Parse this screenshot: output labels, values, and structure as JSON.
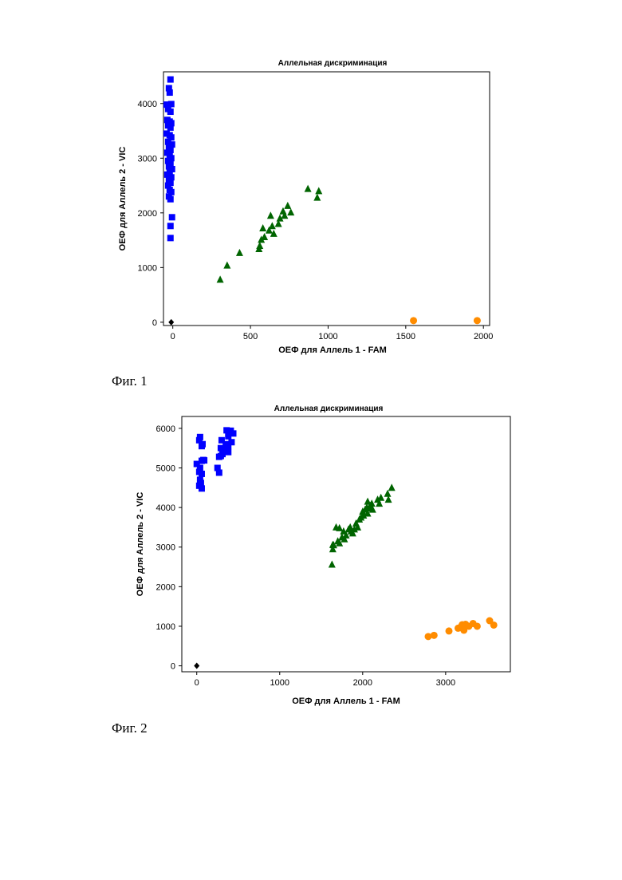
{
  "captions": {
    "fig1": "Фиг. 1",
    "fig2": "Фиг. 2"
  },
  "colors": {
    "blue_square": "#0000ff",
    "green_triangle": "#006400",
    "orange_circle": "#ff8c00",
    "black_diamond": "#000000"
  },
  "chart_data": [
    {
      "type": "scatter",
      "title": "Аллельная дискриминация",
      "xlabel": "ОЕФ для Аллель 1 - FAM",
      "ylabel": "ОЕФ для Аллель 2 - VIC",
      "xlim": [
        -60,
        2040
      ],
      "ylim": [
        -60,
        4580
      ],
      "xticks": [
        0,
        500,
        1000,
        1500,
        2000
      ],
      "yticks": [
        0,
        1000,
        2000,
        3000,
        4000
      ],
      "xtick_labels": [
        "0",
        "500",
        "1000",
        "1500",
        "2000"
      ],
      "ytick_labels": [
        "0",
        "1000",
        "2000",
        "3000",
        "4000"
      ],
      "grid": false,
      "series": [
        {
          "marker": "square",
          "color": "#0000ff",
          "points": [
            [
              -15,
              4440
            ],
            [
              -25,
              4280
            ],
            [
              -20,
              4200
            ],
            [
              -40,
              3980
            ],
            [
              -10,
              3990
            ],
            [
              -30,
              3900
            ],
            [
              -15,
              3850
            ],
            [
              -35,
              3700
            ],
            [
              -20,
              3670
            ],
            [
              -10,
              3640
            ],
            [
              -30,
              3600
            ],
            [
              -15,
              3560
            ],
            [
              -40,
              3450
            ],
            [
              -20,
              3420
            ],
            [
              -10,
              3380
            ],
            [
              -30,
              3300
            ],
            [
              -5,
              3250
            ],
            [
              -25,
              3200
            ],
            [
              -15,
              3150
            ],
            [
              -35,
              3100
            ],
            [
              -20,
              3050
            ],
            [
              -10,
              3000
            ],
            [
              -30,
              2950
            ],
            [
              -15,
              2900
            ],
            [
              -25,
              2850
            ],
            [
              -5,
              2800
            ],
            [
              -20,
              2750
            ],
            [
              -35,
              2700
            ],
            [
              -10,
              2650
            ],
            [
              -25,
              2600
            ],
            [
              -15,
              2550
            ],
            [
              -30,
              2500
            ],
            [
              -20,
              2420
            ],
            [
              -10,
              2380
            ],
            [
              -25,
              2300
            ],
            [
              -15,
              2250
            ],
            [
              -5,
              1920
            ],
            [
              -15,
              1760
            ],
            [
              -15,
              1540
            ]
          ]
        },
        {
          "marker": "triangle",
          "color": "#006400",
          "points": [
            [
              305,
              780
            ],
            [
              350,
              1040
            ],
            [
              430,
              1270
            ],
            [
              555,
              1340
            ],
            [
              560,
              1400
            ],
            [
              570,
              1510
            ],
            [
              590,
              1560
            ],
            [
              580,
              1720
            ],
            [
              620,
              1680
            ],
            [
              640,
              1760
            ],
            [
              630,
              1950
            ],
            [
              650,
              1620
            ],
            [
              680,
              1800
            ],
            [
              690,
              1900
            ],
            [
              720,
              1950
            ],
            [
              710,
              2030
            ],
            [
              740,
              2130
            ],
            [
              760,
              2010
            ],
            [
              870,
              2440
            ],
            [
              930,
              2280
            ],
            [
              940,
              2400
            ]
          ]
        },
        {
          "marker": "circle",
          "color": "#ff8c00",
          "points": [
            [
              1550,
              30
            ],
            [
              1960,
              30
            ]
          ]
        },
        {
          "marker": "diamond",
          "color": "#000000",
          "points": [
            [
              -10,
              0
            ]
          ]
        }
      ]
    },
    {
      "type": "scatter",
      "title": "Аллельная дискриминация",
      "xlabel": "ОЕФ для Аллель 1 - FAM",
      "ylabel": "ОЕФ для Аллель 2 - VIC",
      "xlim": [
        -180,
        3780
      ],
      "ylim": [
        -150,
        6300
      ],
      "xticks": [
        0,
        1000,
        2000,
        3000
      ],
      "yticks": [
        0,
        1000,
        2000,
        3000,
        4000,
        5000,
        6000
      ],
      "xtick_labels": [
        "0",
        "1000",
        "2000",
        "3000"
      ],
      "ytick_labels": [
        "0",
        "1000",
        "2000",
        "3000",
        "4000",
        "5000",
        "6000"
      ],
      "grid": false,
      "series": [
        {
          "marker": "square",
          "color": "#0000ff",
          "points": [
            [
              40,
              5780
            ],
            [
              30,
              5700
            ],
            [
              70,
              5600
            ],
            [
              60,
              5550
            ],
            [
              80,
              5200
            ],
            [
              60,
              5180
            ],
            [
              90,
              5190
            ],
            [
              0,
              5100
            ],
            [
              40,
              5000
            ],
            [
              30,
              4900
            ],
            [
              60,
              4850
            ],
            [
              40,
              4700
            ],
            [
              50,
              4620
            ],
            [
              30,
              4550
            ],
            [
              60,
              4480
            ],
            [
              360,
              5950
            ],
            [
              410,
              5940
            ],
            [
              440,
              5870
            ],
            [
              380,
              5800
            ],
            [
              300,
              5700
            ],
            [
              420,
              5650
            ],
            [
              350,
              5600
            ],
            [
              380,
              5550
            ],
            [
              290,
              5500
            ],
            [
              330,
              5450
            ],
            [
              380,
              5400
            ],
            [
              310,
              5350
            ],
            [
              290,
              5300
            ],
            [
              270,
              5280
            ],
            [
              250,
              5000
            ],
            [
              270,
              4880
            ]
          ]
        },
        {
          "marker": "triangle",
          "color": "#006400",
          "points": [
            [
              1630,
              2560
            ],
            [
              1640,
              2950
            ],
            [
              1650,
              3050
            ],
            [
              1700,
              3150
            ],
            [
              1720,
              3100
            ],
            [
              1750,
              3250
            ],
            [
              1770,
              3400
            ],
            [
              1780,
              3200
            ],
            [
              1800,
              3300
            ],
            [
              1830,
              3450
            ],
            [
              1850,
              3500
            ],
            [
              1860,
              3400
            ],
            [
              1880,
              3350
            ],
            [
              1900,
              3450
            ],
            [
              1920,
              3600
            ],
            [
              1940,
              3500
            ],
            [
              1960,
              3700
            ],
            [
              1980,
              3750
            ],
            [
              2000,
              3900
            ],
            [
              2010,
              3800
            ],
            [
              2030,
              3950
            ],
            [
              2050,
              4000
            ],
            [
              2060,
              3850
            ],
            [
              2090,
              4050
            ],
            [
              2110,
              4100
            ],
            [
              2120,
              3950
            ],
            [
              2180,
              4200
            ],
            [
              2200,
              4100
            ],
            [
              2220,
              4250
            ],
            [
              2300,
              4350
            ],
            [
              2310,
              4200
            ],
            [
              2350,
              4500
            ],
            [
              1680,
              3500
            ],
            [
              1720,
              3480
            ],
            [
              1640,
              3060
            ],
            [
              2060,
              4150
            ],
            [
              2100,
              3980
            ]
          ]
        },
        {
          "marker": "circle",
          "color": "#ff8c00",
          "points": [
            [
              2790,
              740
            ],
            [
              2860,
              770
            ],
            [
              3040,
              880
            ],
            [
              3150,
              950
            ],
            [
              3190,
              1000
            ],
            [
              3200,
              1040
            ],
            [
              3240,
              1050
            ],
            [
              3230,
              980
            ],
            [
              3280,
              1000
            ],
            [
              3330,
              1070
            ],
            [
              3380,
              1000
            ],
            [
              3530,
              1140
            ],
            [
              3580,
              1030
            ],
            [
              3220,
              900
            ]
          ]
        },
        {
          "marker": "diamond",
          "color": "#000000",
          "points": [
            [
              0,
              0
            ]
          ]
        }
      ]
    }
  ]
}
